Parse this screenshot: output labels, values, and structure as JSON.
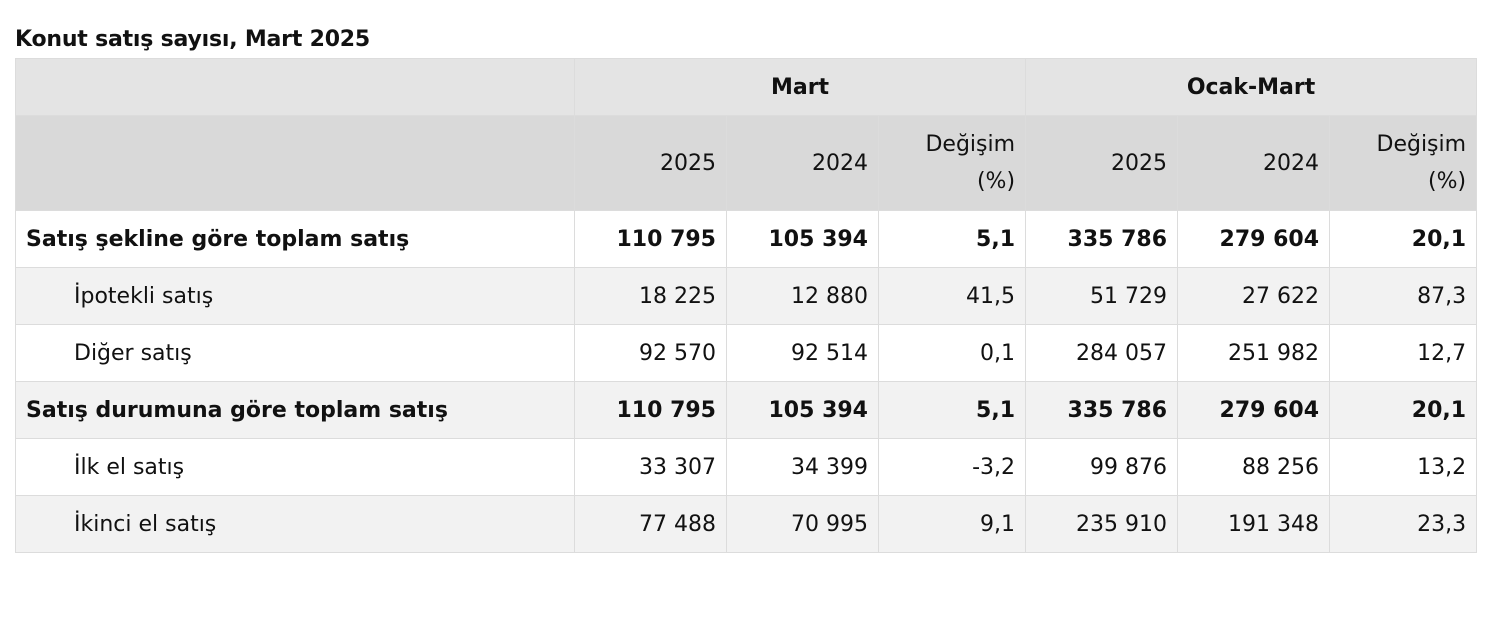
{
  "title": "Konut satış sayısı, Mart 2025",
  "groups": [
    "Mart",
    "Ocak-Mart"
  ],
  "subheaders": [
    "2025",
    "2024",
    "Değişim",
    "(%)"
  ],
  "rows": [
    {
      "label": "Satış şekline göre toplam satış",
      "values": [
        "110 795",
        "105 394",
        "5,1",
        "335 786",
        "279 604",
        "20,1"
      ]
    },
    {
      "label": "İpotekli satış",
      "values": [
        "18 225",
        "12 880",
        "41,5",
        "51 729",
        "27 622",
        "87,3"
      ]
    },
    {
      "label": "Diğer satış",
      "values": [
        "92 570",
        "92 514",
        "0,1",
        "284 057",
        "251 982",
        "12,7"
      ]
    },
    {
      "label": "Satış durumuna göre toplam satış",
      "values": [
        "110 795",
        "105 394",
        "5,1",
        "335 786",
        "279 604",
        "20,1"
      ]
    },
    {
      "label": "İlk el satış",
      "values": [
        "33 307",
        "34 399",
        "-3,2",
        "99 876",
        "88 256",
        "13,2"
      ]
    },
    {
      "label": "İkinci el satış",
      "values": [
        "77 488",
        "70 995",
        "9,1",
        "235 910",
        "191 348",
        "23,3"
      ]
    }
  ],
  "colors": {
    "group_header_bg": "#e4e4e4",
    "sub_header_bg": "#d9d9d9",
    "striped_row_bg": "#f2f2f2",
    "border": "#dcdcdc"
  }
}
